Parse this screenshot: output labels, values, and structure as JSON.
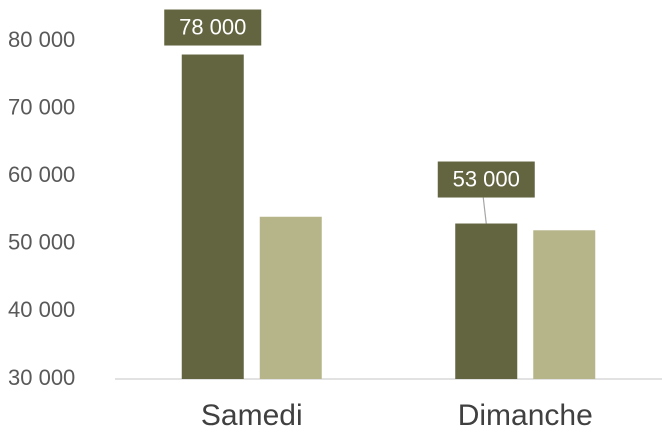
{
  "chart_data": {
    "type": "bar",
    "categories": [
      "Samedi",
      "Dimanche"
    ],
    "series": [
      {
        "color": "#636440",
        "values": [
          78000,
          53000
        ],
        "value_labels": [
          "78 000",
          "53 000"
        ]
      },
      {
        "color": "#b6b58a",
        "values": [
          54000,
          52000
        ]
      }
    ],
    "ylim": [
      30000,
      80000
    ],
    "yticks": [
      {
        "value": 30000,
        "label": "30 000"
      },
      {
        "value": 40000,
        "label": "40 000"
      },
      {
        "value": 50000,
        "label": "50 000"
      },
      {
        "value": 60000,
        "label": "60 000"
      },
      {
        "value": 70000,
        "label": "70 000"
      },
      {
        "value": 80000,
        "label": "80 000"
      }
    ],
    "grid": false
  }
}
